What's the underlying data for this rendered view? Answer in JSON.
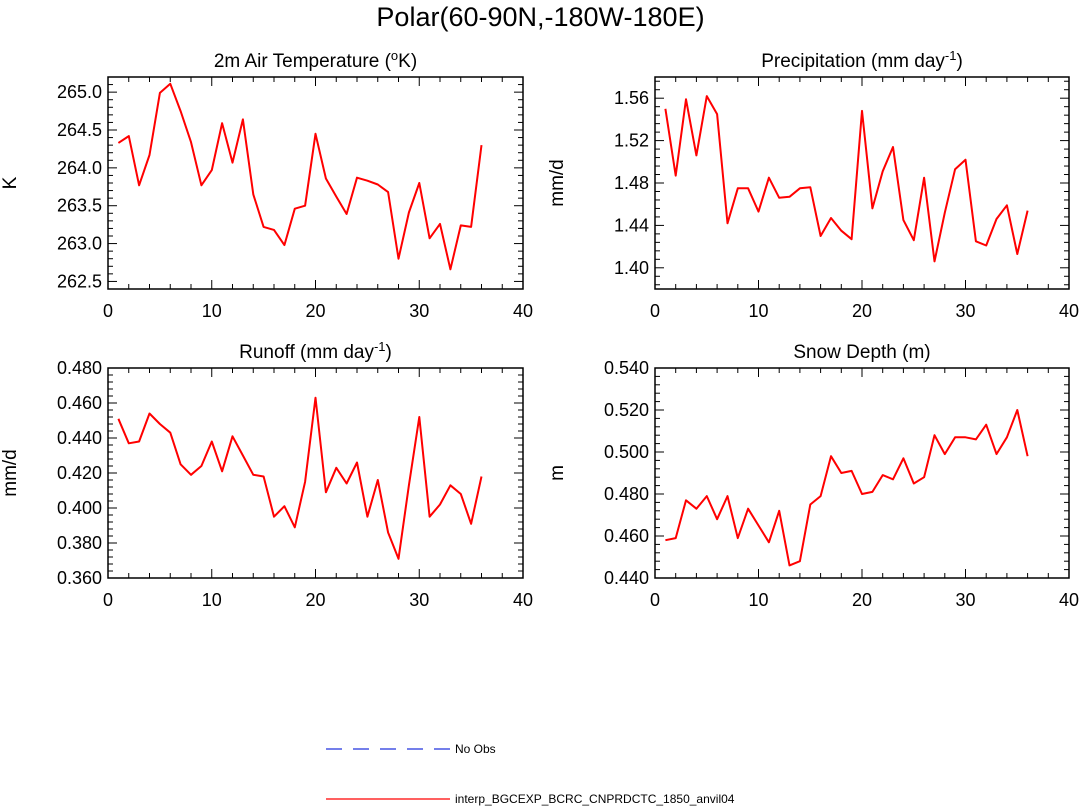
{
  "title": "Polar(60-90N,-180W-180E)",
  "colors": {
    "series": "#ff0000",
    "obs": "#2233dd",
    "axis": "#000000"
  },
  "legend": {
    "entries": [
      {
        "label": "No Obs",
        "style": "dashed",
        "color": "#2233dd"
      },
      {
        "label": "interp_BGCEXP_BCRC_CNPRDCTC_1850_anvil04",
        "style": "solid",
        "color": "#ff0000"
      }
    ]
  },
  "chart_data": [
    {
      "type": "line",
      "title": "2m Air Temperature (",
      "title_sup": "o",
      "title_after": "K)",
      "ylabel": "K",
      "xlabel": "",
      "xlim": [
        0,
        40
      ],
      "ylim": [
        262.4,
        265.2
      ],
      "xticks": [
        0,
        10,
        20,
        30,
        40
      ],
      "xtick_labels": [
        "0",
        "10",
        "20",
        "30",
        "40"
      ],
      "yticks": [
        262.5,
        263.0,
        263.5,
        264.0,
        264.5,
        265.0
      ],
      "ytick_labels": [
        "262.5",
        "263.0",
        "263.5",
        "264.0",
        "264.5",
        "265.0"
      ],
      "series": [
        {
          "name": "interp_BGCEXP_BCRC_CNPRDCTC_1850_anvil04",
          "x": [
            1,
            2,
            3,
            4,
            5,
            6,
            7,
            8,
            9,
            10,
            11,
            12,
            13,
            14,
            15,
            16,
            17,
            18,
            19,
            20,
            21,
            22,
            23,
            24,
            25,
            26,
            27,
            28,
            29,
            30,
            31,
            32,
            33,
            34,
            35,
            36
          ],
          "values": [
            264.33,
            264.42,
            263.77,
            264.17,
            264.99,
            265.11,
            264.75,
            264.34,
            263.77,
            263.97,
            264.59,
            264.07,
            264.64,
            263.65,
            263.22,
            263.18,
            262.98,
            263.46,
            263.5,
            264.45,
            263.86,
            263.62,
            263.39,
            263.87,
            263.83,
            263.78,
            263.68,
            262.8,
            263.41,
            263.8,
            263.07,
            263.26,
            262.66,
            263.24,
            263.22,
            264.3
          ]
        }
      ]
    },
    {
      "type": "line",
      "title": "Precipitation (mm day",
      "title_sup": "-1",
      "title_after": ")",
      "ylabel": "mm/d",
      "xlabel": "",
      "xlim": [
        0,
        40
      ],
      "ylim": [
        1.38,
        1.58
      ],
      "xticks": [
        0,
        10,
        20,
        30,
        40
      ],
      "xtick_labels": [
        "0",
        "10",
        "20",
        "30",
        "40"
      ],
      "yticks": [
        1.4,
        1.44,
        1.48,
        1.52,
        1.56
      ],
      "ytick_labels": [
        "1.40",
        "1.44",
        "1.48",
        "1.52",
        "1.56"
      ],
      "series": [
        {
          "name": "interp_BGCEXP_BCRC_CNPRDCTC_1850_anvil04",
          "x": [
            1,
            2,
            3,
            4,
            5,
            6,
            7,
            8,
            9,
            10,
            11,
            12,
            13,
            14,
            15,
            16,
            17,
            18,
            19,
            20,
            21,
            22,
            23,
            24,
            25,
            26,
            27,
            28,
            29,
            30,
            31,
            32,
            33,
            34,
            35,
            36
          ],
          "values": [
            1.55,
            1.487,
            1.559,
            1.506,
            1.562,
            1.545,
            1.442,
            1.475,
            1.475,
            1.453,
            1.485,
            1.466,
            1.467,
            1.475,
            1.476,
            1.43,
            1.447,
            1.435,
            1.427,
            1.548,
            1.456,
            1.491,
            1.514,
            1.445,
            1.426,
            1.485,
            1.406,
            1.452,
            1.493,
            1.502,
            1.425,
            1.421,
            1.446,
            1.459,
            1.413,
            1.454
          ]
        }
      ]
    },
    {
      "type": "line",
      "title": "Runoff (mm day",
      "title_sup": "-1",
      "title_after": ")",
      "ylabel": "mm/d",
      "xlabel": "",
      "xlim": [
        0,
        40
      ],
      "ylim": [
        0.36,
        0.48
      ],
      "xticks": [
        0,
        10,
        20,
        30,
        40
      ],
      "xtick_labels": [
        "0",
        "10",
        "20",
        "30",
        "40"
      ],
      "yticks": [
        0.36,
        0.38,
        0.4,
        0.42,
        0.44,
        0.46,
        0.48
      ],
      "ytick_labels": [
        "0.360",
        "0.380",
        "0.400",
        "0.420",
        "0.440",
        "0.460",
        "0.480"
      ],
      "series": [
        {
          "name": "interp_BGCEXP_BCRC_CNPRDCTC_1850_anvil04",
          "x": [
            1,
            2,
            3,
            4,
            5,
            6,
            7,
            8,
            9,
            10,
            11,
            12,
            13,
            14,
            15,
            16,
            17,
            18,
            19,
            20,
            21,
            22,
            23,
            24,
            25,
            26,
            27,
            28,
            29,
            30,
            31,
            32,
            33,
            34,
            35,
            36
          ],
          "values": [
            0.451,
            0.437,
            0.438,
            0.454,
            0.448,
            0.443,
            0.425,
            0.419,
            0.424,
            0.438,
            0.421,
            0.441,
            0.43,
            0.419,
            0.418,
            0.395,
            0.401,
            0.389,
            0.415,
            0.463,
            0.409,
            0.423,
            0.414,
            0.426,
            0.395,
            0.416,
            0.386,
            0.371,
            0.413,
            0.452,
            0.395,
            0.402,
            0.413,
            0.408,
            0.391,
            0.418
          ]
        }
      ]
    },
    {
      "type": "line",
      "title": "Snow Depth (m)",
      "title_sup": "",
      "title_after": "",
      "ylabel": "m",
      "xlabel": "",
      "xlim": [
        0,
        40
      ],
      "ylim": [
        0.44,
        0.54
      ],
      "xticks": [
        0,
        10,
        20,
        30,
        40
      ],
      "xtick_labels": [
        "0",
        "10",
        "20",
        "30",
        "40"
      ],
      "yticks": [
        0.44,
        0.46,
        0.48,
        0.5,
        0.52,
        0.54
      ],
      "ytick_labels": [
        "0.440",
        "0.460",
        "0.480",
        "0.500",
        "0.520",
        "0.540"
      ],
      "series": [
        {
          "name": "interp_BGCEXP_BCRC_CNPRDCTC_1850_anvil04",
          "x": [
            1,
            2,
            3,
            4,
            5,
            6,
            7,
            8,
            9,
            10,
            11,
            12,
            13,
            14,
            15,
            16,
            17,
            18,
            19,
            20,
            21,
            22,
            23,
            24,
            25,
            26,
            27,
            28,
            29,
            30,
            31,
            32,
            33,
            34,
            35,
            36
          ],
          "values": [
            0.458,
            0.459,
            0.477,
            0.473,
            0.479,
            0.468,
            0.479,
            0.459,
            0.473,
            0.465,
            0.457,
            0.472,
            0.446,
            0.448,
            0.475,
            0.479,
            0.498,
            0.49,
            0.491,
            0.48,
            0.481,
            0.489,
            0.487,
            0.497,
            0.485,
            0.488,
            0.508,
            0.499,
            0.507,
            0.507,
            0.506,
            0.513,
            0.499,
            0.507,
            0.52,
            0.498
          ]
        }
      ]
    }
  ]
}
